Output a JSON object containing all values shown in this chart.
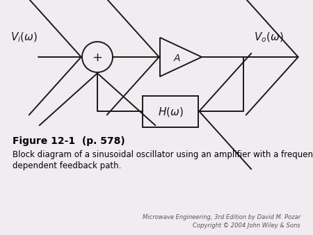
{
  "bg_color": "#f0ecf0",
  "line_color": "#1a1a1a",
  "title_bold": "Figure 12-1  (p. 578)",
  "caption_line1": "Block diagram of a sinusoidal oscillator using an amplifier with a frequency-",
  "caption_line2": "dependent feedback path.",
  "copyright_line1": "Microwave Engineering, 3rd Edition by David M. Pozar",
  "copyright_line2": "Copyright © 2004 John Wiley & Sons",
  "Vi_label": "$V_i(\\omega)$",
  "Vo_label": "$V_o(\\omega)$",
  "H_label": "$H(\\omega)$",
  "A_label": "$\\!A$",
  "plus_label": "+"
}
